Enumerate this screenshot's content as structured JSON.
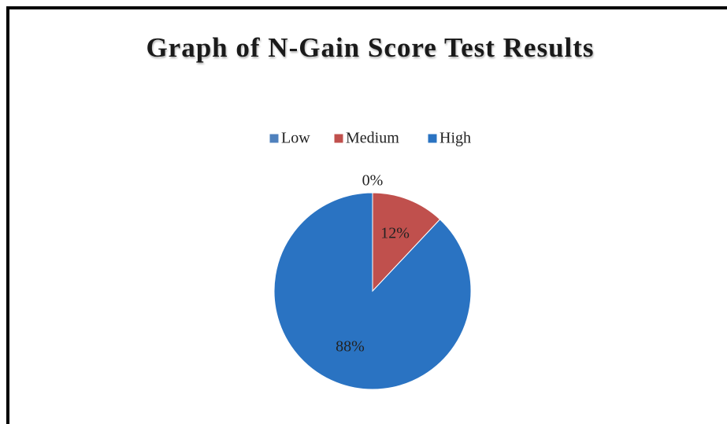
{
  "chart_data": {
    "type": "pie",
    "title": "Graph of N-Gain Score Test Results",
    "categories": [
      "Low",
      "Medium",
      "High"
    ],
    "values": [
      0,
      12,
      88
    ],
    "value_labels": [
      "0%",
      "12%",
      "88%"
    ],
    "colors": [
      "#4f81bd",
      "#c0504d",
      "#2a73c2"
    ],
    "legend": "top"
  }
}
